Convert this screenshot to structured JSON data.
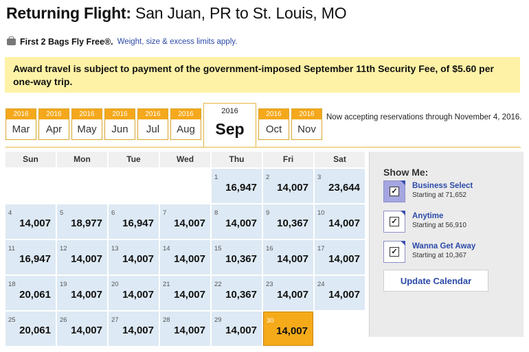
{
  "header": {
    "title_bold": "Returning Flight:",
    "title_route": "San Juan, PR to St. Louis, MO"
  },
  "bags": {
    "icon": "suitcase-icon",
    "label": "First 2 Bags Fly Free®.",
    "link": "Weight, size & excess limits apply."
  },
  "notice": {
    "text": "Award travel is subject to payment of the government-imposed September 11th Security Fee, of $5.60 per one-way trip."
  },
  "months": [
    {
      "year": "2016",
      "month": "Mar"
    },
    {
      "year": "2016",
      "month": "Apr"
    },
    {
      "year": "2016",
      "month": "May"
    },
    {
      "year": "2016",
      "month": "Jun"
    },
    {
      "year": "2016",
      "month": "Jul"
    },
    {
      "year": "2016",
      "month": "Aug"
    },
    {
      "year": "2016",
      "month": "Sep",
      "selected": true
    },
    {
      "year": "2016",
      "month": "Oct"
    },
    {
      "year": "2016",
      "month": "Nov"
    }
  ],
  "availability_note": "Now accepting reservations through November 4, 2016.",
  "calendar": {
    "weekdays": [
      "Sun",
      "Mon",
      "Tue",
      "Wed",
      "Thu",
      "Fri",
      "Sat"
    ],
    "days": [
      {
        "day": "1",
        "points": "16,947"
      },
      {
        "day": "2",
        "points": "14,007"
      },
      {
        "day": "3",
        "points": "23,644"
      },
      {
        "day": "4",
        "points": "14,007"
      },
      {
        "day": "5",
        "points": "18,977"
      },
      {
        "day": "6",
        "points": "16,947"
      },
      {
        "day": "7",
        "points": "14,007"
      },
      {
        "day": "8",
        "points": "14,007"
      },
      {
        "day": "9",
        "points": "10,367"
      },
      {
        "day": "10",
        "points": "14,007"
      },
      {
        "day": "11",
        "points": "16,947"
      },
      {
        "day": "12",
        "points": "14,007"
      },
      {
        "day": "13",
        "points": "14,007"
      },
      {
        "day": "14",
        "points": "14,007"
      },
      {
        "day": "15",
        "points": "10,367"
      },
      {
        "day": "16",
        "points": "14,007"
      },
      {
        "day": "17",
        "points": "14,007"
      },
      {
        "day": "18",
        "points": "20,061"
      },
      {
        "day": "19",
        "points": "14,007"
      },
      {
        "day": "20",
        "points": "14,007"
      },
      {
        "day": "21",
        "points": "14,007"
      },
      {
        "day": "22",
        "points": "10,367"
      },
      {
        "day": "23",
        "points": "14,007"
      },
      {
        "day": "24",
        "points": "14,007"
      },
      {
        "day": "25",
        "points": "20,061"
      },
      {
        "day": "26",
        "points": "14,007"
      },
      {
        "day": "27",
        "points": "14,007"
      },
      {
        "day": "28",
        "points": "14,007"
      },
      {
        "day": "29",
        "points": "14,007"
      },
      {
        "day": "30",
        "points": "14,007",
        "selected": true
      }
    ]
  },
  "sidebar": {
    "title": "Show Me:",
    "options": [
      {
        "name": "Business Select",
        "starting": "Starting at 71,652",
        "checked": true
      },
      {
        "name": "Anytime",
        "starting": "Starting at 56,910",
        "checked": true
      },
      {
        "name": "Wanna Get Away",
        "starting": "Starting at 10,367",
        "checked": true
      }
    ],
    "update_label": "Update Calendar"
  },
  "colors": {
    "accent_orange": "#f5a81c",
    "link_blue": "#2b4aa8",
    "notice_yellow": "#fdf2a6",
    "cell_blue": "#dde9f4"
  }
}
